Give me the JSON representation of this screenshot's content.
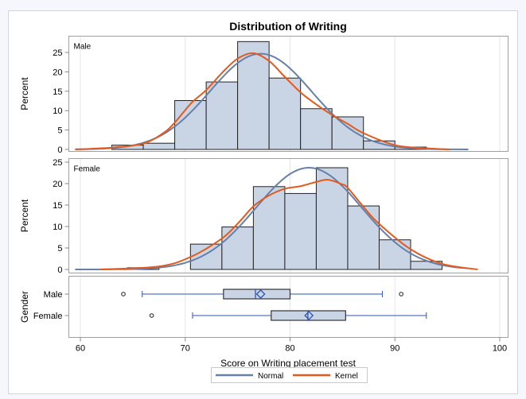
{
  "chart_data": {
    "type": "histogram-panel-with-boxplot",
    "title": "Distribution of Writing",
    "xlabel": "Score on Writing placement test",
    "xlim": [
      59,
      101
    ],
    "xticks": [
      60,
      70,
      80,
      90,
      100
    ],
    "grid": true,
    "colors": {
      "bar_fill": "#c9d5e5",
      "bar_edge": "#222222",
      "normal": "#6680a8",
      "kernel": "#e25a1e",
      "box_whisker": "#2b55b5",
      "frame": "#a0a0a0",
      "grid": "#e6e6e6"
    },
    "legend": {
      "placement": "bottom",
      "entries": [
        {
          "name": "Normal",
          "color": "#6680a8"
        },
        {
          "name": "Kernel",
          "color": "#e25a1e"
        }
      ]
    },
    "panels": [
      {
        "label": "Male",
        "ylabel": "Percent",
        "ylim": [
          0,
          28
        ],
        "yticks": [
          0,
          5,
          10,
          15,
          20,
          25
        ],
        "bin_start": 63,
        "bin_width": 3,
        "values": [
          1.1,
          1.6,
          12.6,
          17.4,
          27.8,
          18.4,
          10.5,
          8.4,
          2.2,
          0.6
        ],
        "normal": {
          "mean": 77.2,
          "sd": 4.85
        },
        "kernel": [
          [
            59.5,
            0
          ],
          [
            63.1,
            0.5
          ],
          [
            66.0,
            1.5
          ],
          [
            67.9,
            4.2
          ],
          [
            69.0,
            6.9
          ],
          [
            70.6,
            12
          ],
          [
            72.0,
            15.3
          ],
          [
            73.6,
            20
          ],
          [
            75.0,
            23.4
          ],
          [
            76.5,
            24.8
          ],
          [
            78.0,
            22.8
          ],
          [
            79.5,
            18.7
          ],
          [
            81.0,
            14.7
          ],
          [
            82.5,
            11.6
          ],
          [
            84.0,
            8.9
          ],
          [
            85.5,
            6.6
          ],
          [
            87.0,
            4.2
          ],
          [
            90.0,
            1.1
          ],
          [
            93.0,
            0.3
          ],
          [
            95.2,
            0
          ]
        ]
      },
      {
        "label": "Female",
        "ylabel": "Percent",
        "ylim": [
          0,
          25.5
        ],
        "yticks": [
          0,
          5,
          10,
          15,
          20,
          25
        ],
        "bin_start": 64.5,
        "bin_width": 3,
        "values": [
          0.4,
          0,
          5.9,
          9.9,
          19.3,
          17.7,
          23.7,
          14.8,
          6.9,
          1.9
        ],
        "normal": {
          "mean": 81.8,
          "sd": 5.05
        },
        "kernel": [
          [
            61.9,
            0
          ],
          [
            67.5,
            0.7
          ],
          [
            70.5,
            2.9
          ],
          [
            73.5,
            7.2
          ],
          [
            75.2,
            11.2
          ],
          [
            76.5,
            14.7
          ],
          [
            77.9,
            17.1
          ],
          [
            79.5,
            18.8
          ],
          [
            81.0,
            19.4
          ],
          [
            82.5,
            20.4
          ],
          [
            83.6,
            20.9
          ],
          [
            84.9,
            19.9
          ],
          [
            85.5,
            19.0
          ],
          [
            87.1,
            14.3
          ],
          [
            88.5,
            10.6
          ],
          [
            91.5,
            4.7
          ],
          [
            94.5,
            1.3
          ],
          [
            97.9,
            0
          ]
        ]
      }
    ],
    "boxplot": {
      "ylabel": "Gender",
      "groups": [
        {
          "name": "Male",
          "whisker_low": 65.9,
          "q1": 73.65,
          "median": 76.7,
          "mean": 77.2,
          "q3": 80.0,
          "whisker_high": 88.8,
          "outliers": [
            64.1,
            90.6
          ]
        },
        {
          "name": "Female",
          "whisker_low": 70.7,
          "q1": 78.2,
          "median": 81.7,
          "mean": 81.8,
          "q3": 85.3,
          "whisker_high": 93.0,
          "outliers": [
            66.8
          ]
        }
      ]
    }
  }
}
